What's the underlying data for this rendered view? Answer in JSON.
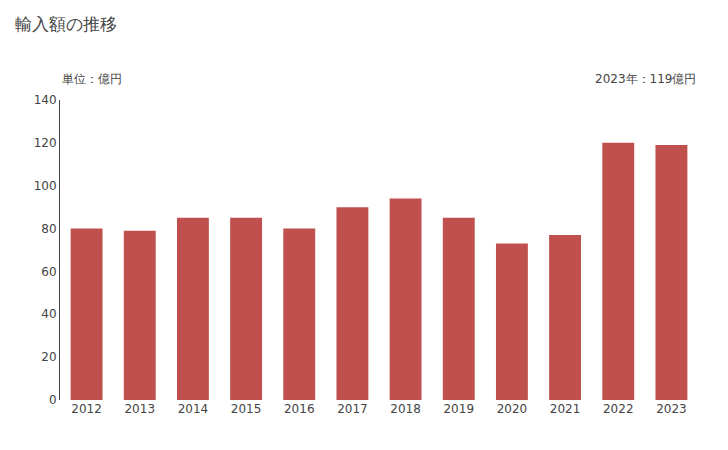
{
  "chart_data": {
    "type": "bar",
    "title": "輸入額の推移",
    "ylabel": "単位：億円",
    "annotation": "2023年：119億円",
    "categories": [
      "2012",
      "2013",
      "2014",
      "2015",
      "2016",
      "2017",
      "2018",
      "2019",
      "2020",
      "2021",
      "2022",
      "2023"
    ],
    "values": [
      80,
      79,
      85,
      85,
      80,
      90,
      94,
      85,
      73,
      77,
      120,
      119
    ],
    "color": "#c0504d",
    "ylim": [
      0,
      140
    ],
    "yticks": [
      0,
      20,
      40,
      60,
      80,
      100,
      120,
      140
    ],
    "grid": false
  }
}
